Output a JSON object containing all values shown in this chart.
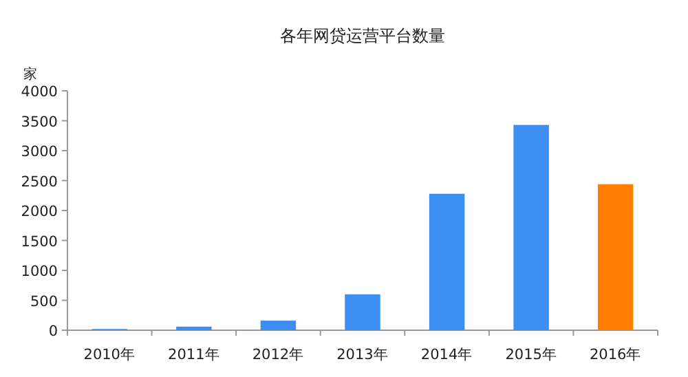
{
  "chart_data": {
    "type": "bar",
    "title": "各年网贷运营平台数量",
    "ylabel": "家",
    "categories": [
      "2010年",
      "2011年",
      "2012年",
      "2013年",
      "2014年",
      "2015年",
      "2016年"
    ],
    "values": [
      20,
      60,
      160,
      600,
      2280,
      3430,
      2440
    ],
    "colors": [
      "#3c8ff0",
      "#3c8ff0",
      "#3c8ff0",
      "#3c8ff0",
      "#3c8ff0",
      "#3c8ff0",
      "#ff8000"
    ],
    "ylim": [
      0,
      4000
    ],
    "yticks": [
      0,
      500,
      1000,
      1500,
      2000,
      2500,
      3000,
      3500,
      4000
    ],
    "grid": false
  }
}
